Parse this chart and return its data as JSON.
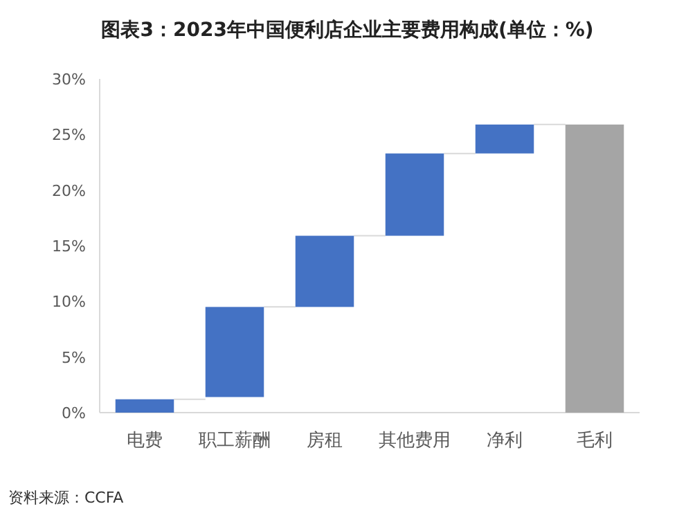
{
  "chart_data": {
    "type": "bar",
    "title": "图表3：2023年中国便利店企业主要费用构成(单位：%)",
    "categories": [
      "电费",
      "职工薪酬",
      "房租",
      "其他费用",
      "净利",
      "毛利"
    ],
    "values": [
      1.2,
      8.1,
      6.4,
      7.4,
      2.6,
      25.9
    ],
    "base": [
      0,
      1.4,
      9.5,
      15.9,
      23.3,
      0
    ],
    "colors": [
      "#4472c4",
      "#4472c4",
      "#4472c4",
      "#4472c4",
      "#4472c4",
      "#a5a5a5"
    ],
    "ylim": [
      0,
      30
    ],
    "yticks": [
      {
        "value": 0,
        "label": "0%"
      },
      {
        "value": 5,
        "label": "5%"
      },
      {
        "value": 10,
        "label": "10%"
      },
      {
        "value": 15,
        "label": "15%"
      },
      {
        "value": 20,
        "label": "20%"
      },
      {
        "value": 25,
        "label": "25%"
      },
      {
        "value": 30,
        "label": "30%"
      }
    ],
    "grid": false,
    "annotations": [
      "资料来源：CCFA"
    ]
  }
}
